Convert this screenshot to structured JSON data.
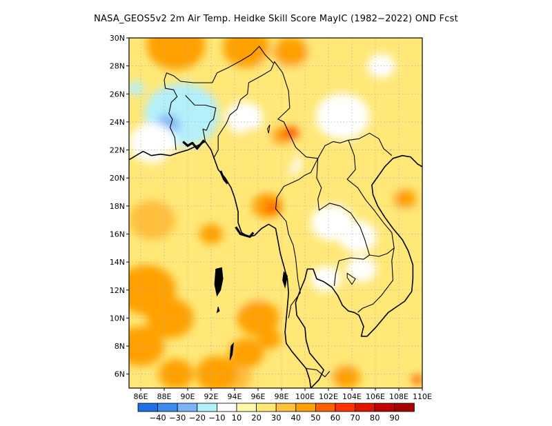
{
  "title": "NASA_GEOS5v2 2m Air Temp. Heidke Skill Score MayIC (1982−2022) OND Fcst",
  "map": {
    "region": "Southeast Asia / Bay of Bengal",
    "lon_range": [
      85,
      110
    ],
    "lat_range": [
      5,
      30
    ],
    "lon_ticks": [
      {
        "value": 86,
        "label": "86E"
      },
      {
        "value": 88,
        "label": "88E"
      },
      {
        "value": 90,
        "label": "90E"
      },
      {
        "value": 92,
        "label": "92E"
      },
      {
        "value": 94,
        "label": "94E"
      },
      {
        "value": 96,
        "label": "96E"
      },
      {
        "value": 98,
        "label": "98E"
      },
      {
        "value": 100,
        "label": "100E"
      },
      {
        "value": 102,
        "label": "102E"
      },
      {
        "value": 104,
        "label": "104E"
      },
      {
        "value": 106,
        "label": "106E"
      },
      {
        "value": 108,
        "label": "108E"
      },
      {
        "value": 110,
        "label": "110E"
      }
    ],
    "lat_ticks": [
      {
        "value": 6,
        "label": "6N"
      },
      {
        "value": 8,
        "label": "8N"
      },
      {
        "value": 10,
        "label": "10N"
      },
      {
        "value": 12,
        "label": "12N"
      },
      {
        "value": 14,
        "label": "14N"
      },
      {
        "value": 16,
        "label": "16N"
      },
      {
        "value": 18,
        "label": "18N"
      },
      {
        "value": 20,
        "label": "20N"
      },
      {
        "value": 22,
        "label": "22N"
      },
      {
        "value": 24,
        "label": "24N"
      },
      {
        "value": 26,
        "label": "26N"
      },
      {
        "value": 28,
        "label": "28N"
      },
      {
        "value": 30,
        "label": "30N"
      }
    ],
    "grid": true,
    "grid_style": "dotted"
  },
  "colorbar": {
    "colors": [
      "#1e6ee6",
      "#3c8cf0",
      "#78b4f8",
      "#b4f0fa",
      "#ffffff",
      "#fffaaa",
      "#ffe878",
      "#ffc03c",
      "#ffa000",
      "#ff6000",
      "#ff3200",
      "#e11400",
      "#c00000",
      "#a50000"
    ],
    "labels": [
      "-40",
      "-30",
      "-20",
      "-10",
      "10",
      "20",
      "30",
      "40",
      "50",
      "60",
      "70",
      "80",
      "90"
    ]
  },
  "field_patches": [
    {
      "lon": 89.5,
      "lat": 24.5,
      "r": 3.2,
      "level": -10
    },
    {
      "lon": 88.3,
      "lat": 23.8,
      "r": 1.0,
      "level": -20
    },
    {
      "lon": 86.3,
      "lat": 22.0,
      "r": 0.4,
      "level": -20
    },
    {
      "lon": 85.6,
      "lat": 26.4,
      "r": 0.7,
      "level": -10
    },
    {
      "lon": 87.0,
      "lat": 22.5,
      "r": 2.0,
      "level": 0
    },
    {
      "lon": 94.8,
      "lat": 24.3,
      "r": 1.6,
      "level": 0
    },
    {
      "lon": 103.2,
      "lat": 24.4,
      "r": 2.3,
      "level": 0
    },
    {
      "lon": 106.5,
      "lat": 28.0,
      "r": 1.2,
      "level": 0
    },
    {
      "lon": 102.3,
      "lat": 16.8,
      "r": 1.8,
      "level": 0
    },
    {
      "lon": 104.5,
      "lat": 15.8,
      "r": 1.6,
      "level": 0
    },
    {
      "lon": 101.8,
      "lat": 12.8,
      "r": 1.3,
      "level": 0
    },
    {
      "lon": 104.8,
      "lat": 13.5,
      "r": 1.3,
      "level": 0
    },
    {
      "lon": 98.5,
      "lat": 21.0,
      "r": 1.2,
      "level": 0
    },
    {
      "lon": 99.0,
      "lat": 27.8,
      "r": 2.8,
      "level": 20
    },
    {
      "lon": 96.2,
      "lat": 21.5,
      "r": 3.0,
      "level": 20
    },
    {
      "lon": 90.5,
      "lat": 19.8,
      "r": 3.5,
      "level": 20
    },
    {
      "lon": 97.5,
      "lat": 15.0,
      "r": 2.5,
      "level": 20
    },
    {
      "lon": 94.8,
      "lat": 12.5,
      "r": 2.5,
      "level": 20
    },
    {
      "lon": 101.0,
      "lat": 9.5,
      "r": 2.0,
      "level": 20
    },
    {
      "lon": 108.5,
      "lat": 8.5,
      "r": 2.0,
      "level": 20
    },
    {
      "lon": 105.0,
      "lat": 20.2,
      "r": 3.5,
      "level": 20
    },
    {
      "lon": 107.0,
      "lat": 17.5,
      "r": 2.0,
      "level": 20
    },
    {
      "lon": 102.0,
      "lat": 6.5,
      "r": 2.0,
      "level": 20
    },
    {
      "lon": 87.0,
      "lat": 17.0,
      "r": 2.0,
      "level": 30
    },
    {
      "lon": 94.0,
      "lat": 5.8,
      "r": 1.5,
      "level": 30
    },
    {
      "lon": 89.0,
      "lat": 29.5,
      "r": 2.5,
      "level": 40
    },
    {
      "lon": 95.0,
      "lat": 29.3,
      "r": 2.0,
      "level": 40
    },
    {
      "lon": 98.8,
      "lat": 29.0,
      "r": 1.5,
      "level": 40
    },
    {
      "lon": 86.5,
      "lat": 12.0,
      "r": 2.5,
      "level": 40
    },
    {
      "lon": 88.5,
      "lat": 10.0,
      "r": 2.0,
      "level": 40
    },
    {
      "lon": 86.0,
      "lat": 8.0,
      "r": 2.0,
      "level": 40
    },
    {
      "lon": 92.5,
      "lat": 6.0,
      "r": 1.8,
      "level": 40
    },
    {
      "lon": 89.0,
      "lat": 6.0,
      "r": 1.5,
      "level": 40
    },
    {
      "lon": 96.0,
      "lat": 10.0,
      "r": 1.8,
      "level": 40
    },
    {
      "lon": 95.0,
      "lat": 7.5,
      "r": 1.5,
      "level": 40
    },
    {
      "lon": 96.8,
      "lat": 18.0,
      "r": 1.3,
      "level": 40
    },
    {
      "lon": 98.0,
      "lat": 23.0,
      "r": 0.9,
      "level": 40
    },
    {
      "lon": 97.0,
      "lat": 8.5,
      "r": 1.0,
      "level": 40
    },
    {
      "lon": 108.5,
      "lat": 18.5,
      "r": 1.0,
      "level": 40
    },
    {
      "lon": 103.5,
      "lat": 5.8,
      "r": 1.2,
      "level": 40
    },
    {
      "lon": 92.0,
      "lat": 16.0,
      "r": 1.0,
      "level": 40
    },
    {
      "lon": 98.8,
      "lat": 23.2,
      "r": 0.7,
      "level": 50
    },
    {
      "lon": 109.6,
      "lat": 5.6,
      "r": 0.5,
      "level": 50
    },
    {
      "lon": 97.2,
      "lat": 17.9,
      "r": 0.6,
      "level": 50
    }
  ],
  "coastlines": [
    [
      [
        85.0,
        21.3
      ],
      [
        86.2,
        21.9
      ],
      [
        86.9,
        21.6
      ],
      [
        87.7,
        21.7
      ],
      [
        88.5,
        21.6
      ],
      [
        89.2,
        21.8
      ],
      [
        90.0,
        22.0
      ],
      [
        90.8,
        22.3
      ],
      [
        91.5,
        22.6
      ],
      [
        92.0,
        22.0
      ],
      [
        92.3,
        21.3
      ],
      [
        92.6,
        20.6
      ],
      [
        93.2,
        20.0
      ],
      [
        93.7,
        19.3
      ],
      [
        94.0,
        18.6
      ],
      [
        94.3,
        17.6
      ],
      [
        94.3,
        16.8
      ],
      [
        94.6,
        16.1
      ],
      [
        95.2,
        15.8
      ],
      [
        95.7,
        15.9
      ],
      [
        96.3,
        16.4
      ],
      [
        96.9,
        16.7
      ],
      [
        97.5,
        16.4
      ],
      [
        97.7,
        15.5
      ],
      [
        97.9,
        14.6
      ],
      [
        98.2,
        13.7
      ],
      [
        98.5,
        12.8
      ],
      [
        98.6,
        11.8
      ],
      [
        98.5,
        10.8
      ],
      [
        98.4,
        9.9
      ],
      [
        98.3,
        9.0
      ],
      [
        98.4,
        8.2
      ],
      [
        98.9,
        7.6
      ],
      [
        99.5,
        7.0
      ],
      [
        100.1,
        6.4
      ],
      [
        100.4,
        5.6
      ],
      [
        100.5,
        5.0
      ]
    ],
    [
      [
        100.5,
        5.0
      ],
      [
        101.2,
        5.6
      ],
      [
        101.6,
        6.3
      ],
      [
        101.0,
        6.9
      ],
      [
        100.4,
        7.5
      ],
      [
        100.1,
        8.4
      ],
      [
        100.0,
        9.3
      ],
      [
        99.3,
        10.2
      ],
      [
        99.2,
        11.1
      ],
      [
        99.6,
        12.0
      ],
      [
        100.0,
        12.8
      ],
      [
        100.2,
        13.5
      ],
      [
        100.7,
        13.5
      ],
      [
        101.0,
        12.8
      ],
      [
        101.6,
        12.6
      ],
      [
        102.3,
        12.2
      ],
      [
        102.8,
        11.6
      ],
      [
        103.2,
        10.9
      ],
      [
        103.7,
        10.5
      ],
      [
        104.2,
        10.4
      ],
      [
        104.6,
        10.2
      ],
      [
        105.0,
        9.4
      ],
      [
        104.8,
        8.7
      ],
      [
        105.3,
        8.7
      ],
      [
        106.0,
        9.3
      ],
      [
        106.7,
        10.0
      ],
      [
        107.1,
        10.4
      ],
      [
        107.8,
        10.8
      ],
      [
        108.5,
        11.2
      ],
      [
        109.1,
        11.9
      ],
      [
        109.2,
        12.8
      ],
      [
        109.2,
        13.8
      ],
      [
        108.8,
        14.8
      ],
      [
        108.3,
        15.6
      ],
      [
        107.5,
        16.4
      ],
      [
        106.8,
        17.2
      ],
      [
        106.2,
        18.0
      ],
      [
        105.8,
        18.8
      ],
      [
        105.7,
        19.5
      ],
      [
        106.3,
        20.2
      ],
      [
        106.8,
        20.8
      ],
      [
        107.5,
        21.4
      ],
      [
        108.3,
        21.6
      ],
      [
        109.0,
        21.5
      ],
      [
        109.6,
        21.0
      ],
      [
        110.0,
        20.8
      ]
    ]
  ],
  "islands": [
    [
      [
        92.4,
        13.5
      ],
      [
        92.9,
        13.6
      ],
      [
        93.0,
        12.8
      ],
      [
        92.8,
        12.0
      ],
      [
        92.5,
        11.6
      ],
      [
        92.3,
        12.4
      ],
      [
        92.4,
        13.5
      ]
    ],
    [
      [
        93.7,
        8.0
      ],
      [
        93.9,
        8.2
      ],
      [
        93.8,
        7.4
      ],
      [
        93.6,
        7.0
      ],
      [
        93.7,
        8.0
      ]
    ],
    [
      [
        92.6,
        10.8
      ],
      [
        92.7,
        10.5
      ],
      [
        92.5,
        10.4
      ],
      [
        92.6,
        10.8
      ]
    ],
    [
      [
        98.2,
        13.3
      ],
      [
        98.5,
        13.0
      ],
      [
        98.3,
        12.2
      ],
      [
        98.1,
        12.7
      ],
      [
        98.2,
        13.3
      ]
    ]
  ],
  "borders": [
    [
      [
        88.0,
        27.0
      ],
      [
        88.2,
        27.5
      ],
      [
        88.8,
        27.3
      ],
      [
        89.4,
        26.9
      ],
      [
        90.5,
        26.8
      ],
      [
        91.6,
        26.8
      ],
      [
        92.1,
        26.8
      ],
      [
        92.5,
        27.5
      ],
      [
        93.5,
        27.9
      ],
      [
        94.6,
        28.4
      ],
      [
        95.4,
        28.8
      ],
      [
        96.1,
        29.4
      ],
      [
        96.6,
        28.8
      ],
      [
        97.3,
        28.2
      ]
    ],
    [
      [
        88.0,
        27.0
      ],
      [
        88.1,
        26.4
      ],
      [
        88.8,
        26.3
      ],
      [
        89.1,
        25.8
      ],
      [
        88.6,
        25.4
      ],
      [
        88.4,
        24.6
      ],
      [
        88.7,
        24.2
      ],
      [
        88.5,
        23.6
      ],
      [
        88.9,
        22.9
      ],
      [
        89.0,
        22.0
      ]
    ],
    [
      [
        89.8,
        25.9
      ],
      [
        90.6,
        25.2
      ],
      [
        91.5,
        25.2
      ],
      [
        92.4,
        25.0
      ],
      [
        92.2,
        24.2
      ],
      [
        91.9,
        24.0
      ],
      [
        91.6,
        23.4
      ],
      [
        91.3,
        23.5
      ],
      [
        91.5,
        22.6
      ]
    ],
    [
      [
        92.2,
        21.4
      ],
      [
        92.6,
        22.0
      ],
      [
        92.6,
        23.0
      ],
      [
        93.3,
        23.9
      ],
      [
        93.6,
        24.5
      ],
      [
        94.2,
        24.9
      ],
      [
        94.5,
        25.6
      ],
      [
        95.1,
        26.0
      ],
      [
        95.2,
        26.8
      ],
      [
        96.3,
        27.3
      ],
      [
        97.1,
        27.7
      ],
      [
        97.4,
        28.3
      ],
      [
        98.1,
        27.5
      ],
      [
        98.6,
        26.2
      ],
      [
        98.7,
        25.0
      ],
      [
        97.7,
        24.2
      ],
      [
        98.2,
        24.0
      ],
      [
        99.2,
        22.2
      ],
      [
        100.1,
        21.5
      ],
      [
        101.1,
        21.4
      ]
    ],
    [
      [
        101.1,
        21.4
      ],
      [
        100.5,
        20.4
      ],
      [
        100.0,
        20.2
      ],
      [
        99.5,
        19.9
      ],
      [
        98.2,
        19.4
      ],
      [
        97.6,
        18.6
      ],
      [
        97.5,
        17.8
      ],
      [
        98.4,
        16.9
      ],
      [
        98.6,
        16.0
      ],
      [
        99.0,
        15.2
      ],
      [
        99.2,
        14.3
      ],
      [
        99.4,
        12.7
      ],
      [
        99.6,
        11.8
      ],
      [
        98.8,
        10.9
      ],
      [
        98.6,
        10.0
      ]
    ],
    [
      [
        101.1,
        21.4
      ],
      [
        101.7,
        22.3
      ],
      [
        102.4,
        22.6
      ],
      [
        103.0,
        22.5
      ],
      [
        103.7,
        22.7
      ],
      [
        104.6,
        22.8
      ],
      [
        105.5,
        23.2
      ],
      [
        106.3,
        22.8
      ],
      [
        106.7,
        22.1
      ],
      [
        107.4,
        21.6
      ]
    ],
    [
      [
        101.1,
        21.4
      ],
      [
        101.0,
        20.0
      ],
      [
        101.4,
        19.3
      ],
      [
        101.1,
        18.5
      ],
      [
        101.2,
        17.7
      ],
      [
        102.1,
        18.2
      ],
      [
        103.0,
        18.0
      ],
      [
        103.9,
        17.5
      ],
      [
        104.7,
        16.5
      ],
      [
        105.1,
        15.6
      ],
      [
        105.5,
        14.5
      ],
      [
        105.0,
        14.2
      ],
      [
        103.9,
        14.3
      ],
      [
        102.9,
        14.1
      ],
      [
        102.6,
        13.1
      ],
      [
        102.5,
        12.3
      ]
    ],
    [
      [
        103.7,
        22.7
      ],
      [
        104.2,
        21.6
      ],
      [
        104.3,
        20.6
      ],
      [
        103.6,
        19.9
      ],
      [
        104.5,
        19.3
      ],
      [
        105.2,
        18.4
      ],
      [
        105.9,
        17.7
      ],
      [
        106.7,
        16.8
      ],
      [
        107.4,
        16.1
      ],
      [
        107.6,
        15.0
      ],
      [
        107.4,
        14.1
      ],
      [
        107.5,
        12.7
      ],
      [
        106.5,
        11.6
      ],
      [
        105.8,
        11.0
      ],
      [
        104.9,
        10.7
      ],
      [
        104.5,
        10.4
      ]
    ],
    [
      [
        105.5,
        14.5
      ],
      [
        106.3,
        14.4
      ],
      [
        107.0,
        14.6
      ],
      [
        107.6,
        15.0
      ]
    ],
    [
      [
        100.1,
        6.4
      ],
      [
        101.0,
        6.3
      ],
      [
        101.7,
        5.8
      ],
      [
        102.1,
        6.2
      ]
    ]
  ],
  "lakes": [
    [
      [
        103.6,
        13.2
      ],
      [
        104.3,
        12.8
      ],
      [
        104.0,
        12.4
      ],
      [
        103.6,
        12.9
      ],
      [
        103.6,
        13.2
      ]
    ],
    [
      [
        96.8,
        23.5
      ],
      [
        97.0,
        23.8
      ],
      [
        96.9,
        23.2
      ],
      [
        96.8,
        23.5
      ]
    ]
  ]
}
